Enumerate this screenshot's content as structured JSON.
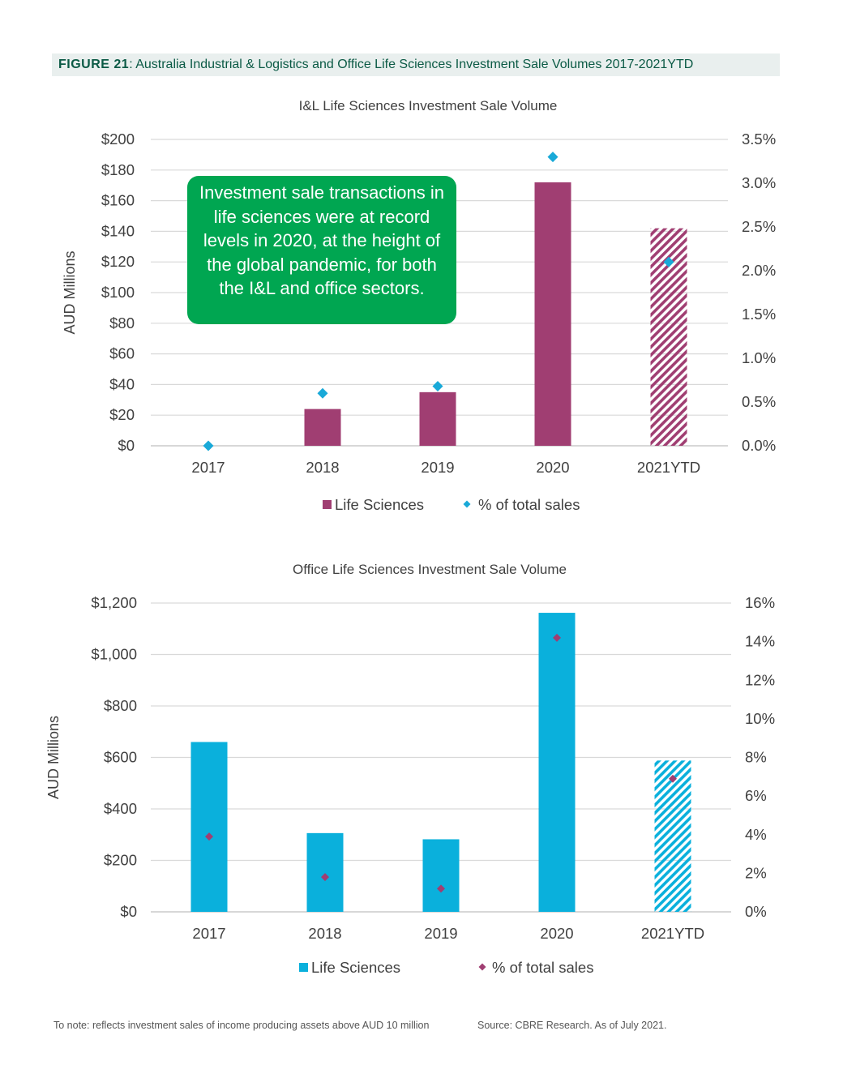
{
  "figure": {
    "label": "FIGURE 21",
    "separator": ": ",
    "title": "Australia Industrial & Logistics and Office Life Sciences Investment Sale Volumes 2017-2021YTD"
  },
  "callout": {
    "text": "Investment sale transactions in life sciences were at record levels in 2020, at the height of the global pandemic, for both the I&L and office sectors."
  },
  "footer": {
    "note": "To note: reflects investment sales of income producing assets above AUD 10 million",
    "source": "Source: CBRE Research. As of July 2021."
  },
  "colors": {
    "il_bar": "#a03e72",
    "il_marker": "#19a9d8",
    "office_bar": "#0ab0dc",
    "office_marker": "#a03e72",
    "grid": "#d9d9d9",
    "text": "#404040"
  },
  "chart_data": [
    {
      "type": "bar",
      "title": "I&L Life Sciences Investment Sale Volume",
      "ylabel": "AUD Millions",
      "categories": [
        "2017",
        "2018",
        "2019",
        "2020",
        "2021YTD"
      ],
      "ylim": [
        0,
        200
      ],
      "y_ticks": [
        "$0",
        "$20",
        "$40",
        "$60",
        "$80",
        "$100",
        "$120",
        "$140",
        "$160",
        "$180",
        "$200"
      ],
      "y2lim": [
        0,
        3.5
      ],
      "y2_ticks": [
        "0.0%",
        "0.5%",
        "1.0%",
        "1.5%",
        "2.0%",
        "2.5%",
        "3.0%",
        "3.5%"
      ],
      "hatched_last": true,
      "grid": true,
      "legend_position": "bottom",
      "series": [
        {
          "name": "Life Sciences",
          "kind": "bar",
          "axis": "left",
          "values": [
            0,
            24,
            35,
            172,
            142
          ]
        },
        {
          "name": "% of total sales",
          "kind": "diamond",
          "axis": "right",
          "values": [
            0.0,
            0.6,
            0.68,
            3.3,
            2.1
          ]
        }
      ]
    },
    {
      "type": "bar",
      "title": "Office Life Sciences Investment Sale Volume",
      "ylabel": "AUD Millions",
      "categories": [
        "2017",
        "2018",
        "2019",
        "2020",
        "2021YTD"
      ],
      "ylim": [
        0,
        1200
      ],
      "y_ticks": [
        "$0",
        "$200",
        "$400",
        "$600",
        "$800",
        "$1,000",
        "$1,200"
      ],
      "y2lim": [
        0,
        16
      ],
      "y2_ticks": [
        "0%",
        "2%",
        "4%",
        "6%",
        "8%",
        "10%",
        "12%",
        "14%",
        "16%"
      ],
      "hatched_last": true,
      "grid": true,
      "legend_position": "bottom",
      "series": [
        {
          "name": "Life Sciences",
          "kind": "bar",
          "axis": "left",
          "values": [
            660,
            306,
            282,
            1162,
            588
          ]
        },
        {
          "name": "% of total sales",
          "kind": "diamond",
          "axis": "right",
          "values": [
            3.9,
            1.8,
            1.2,
            14.2,
            6.9
          ]
        }
      ]
    }
  ]
}
